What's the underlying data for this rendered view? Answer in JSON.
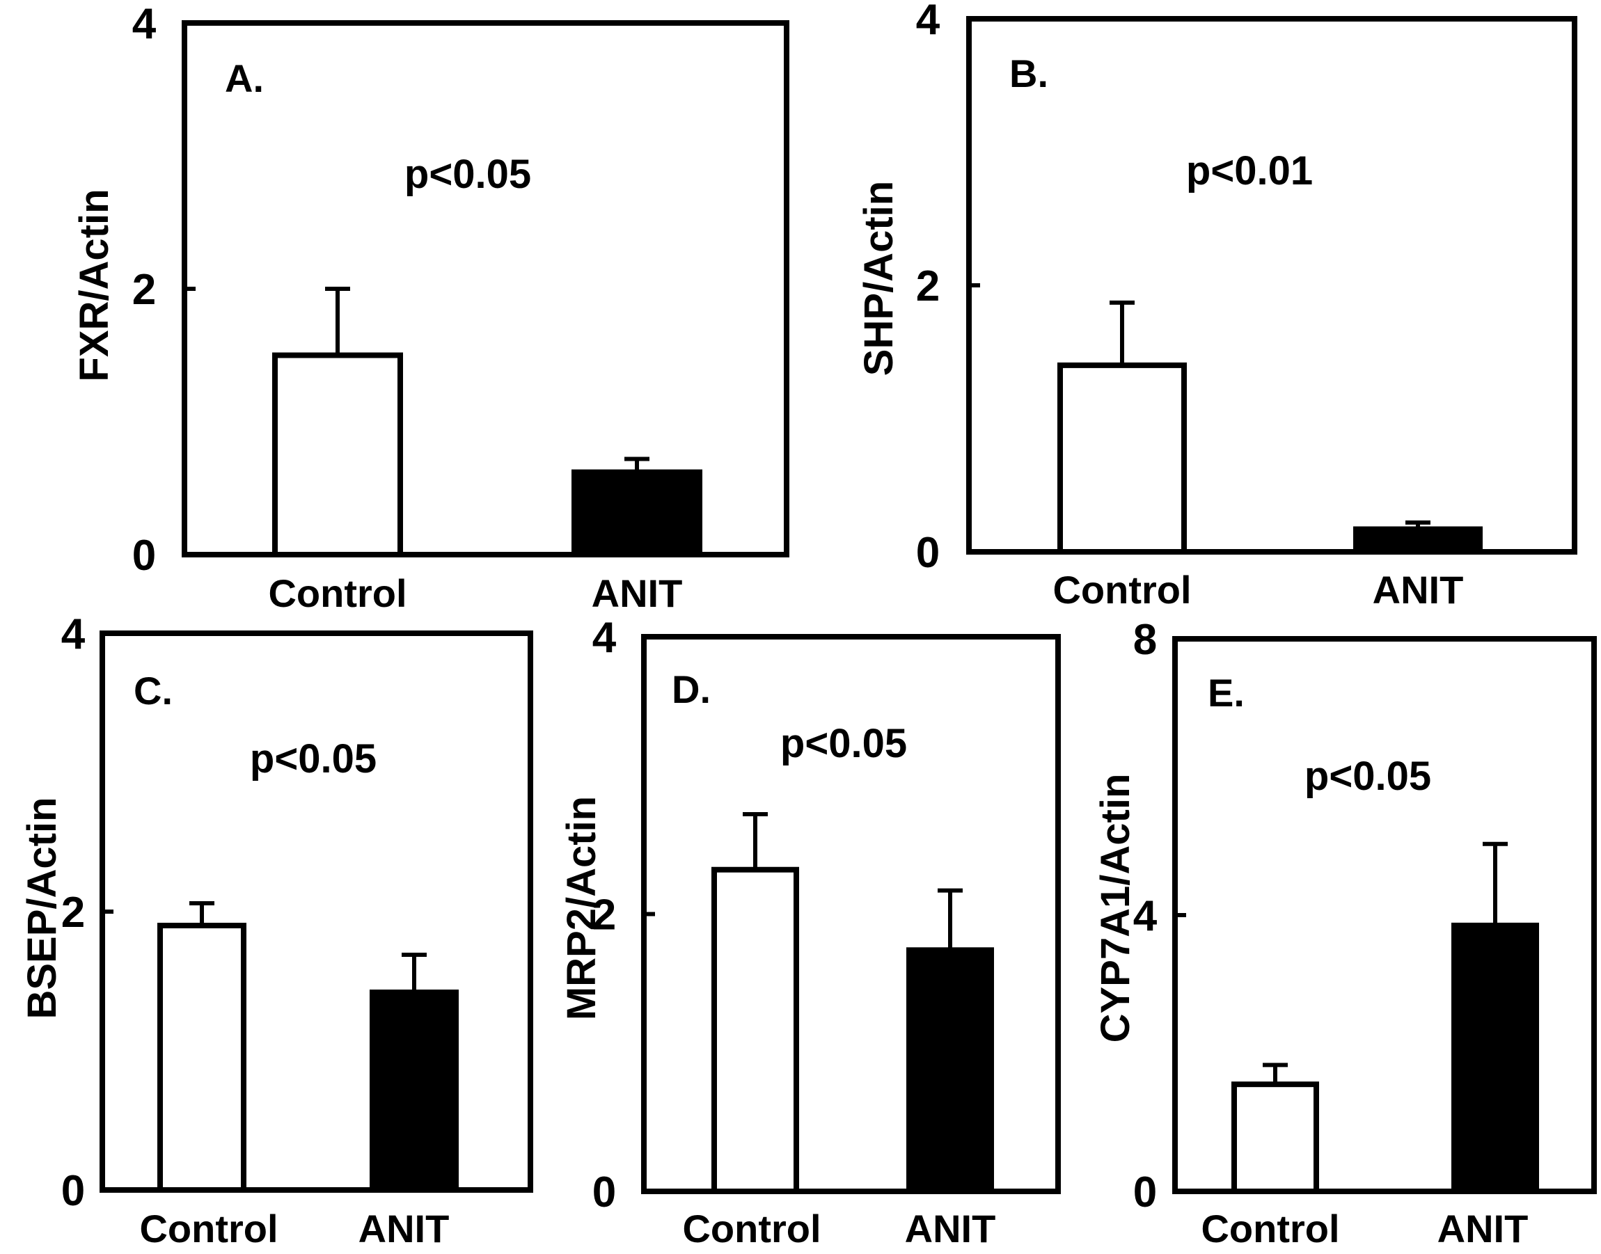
{
  "chart_data": [
    {
      "type": "bar",
      "panel": "A.",
      "ylabel": "FXR/Actin",
      "annotation": "p<0.05",
      "categories": [
        "Control",
        "ANIT"
      ],
      "values": [
        1.5,
        0.62
      ],
      "errors": [
        0.5,
        0.1
      ],
      "bar_colors": [
        "#ffffff",
        "#000000"
      ],
      "ylim": [
        0,
        4
      ],
      "yticks": [
        "0",
        "2",
        "4"
      ]
    },
    {
      "type": "bar",
      "panel": "B.",
      "ylabel": "SHP/Actin",
      "annotation": "p<0.01",
      "categories": [
        "Control",
        "ANIT"
      ],
      "values": [
        1.4,
        0.17
      ],
      "errors": [
        0.47,
        0.05
      ],
      "bar_colors": [
        "#ffffff",
        "#000000"
      ],
      "ylim": [
        0,
        4
      ],
      "yticks": [
        "0",
        "2",
        "4"
      ]
    },
    {
      "type": "bar",
      "panel": "C.",
      "ylabel": "BSEP/Actin",
      "annotation": "p<0.05",
      "categories": [
        "Control",
        "ANIT"
      ],
      "values": [
        1.9,
        1.42
      ],
      "errors": [
        0.16,
        0.27
      ],
      "bar_colors": [
        "#ffffff",
        "#000000"
      ],
      "ylim": [
        0,
        4
      ],
      "yticks": [
        "0",
        "2",
        "4"
      ]
    },
    {
      "type": "bar",
      "panel": "D.",
      "ylabel": "MRP2/Actin",
      "annotation": "p<0.05",
      "categories": [
        "Control",
        "ANIT"
      ],
      "values": [
        2.32,
        1.74
      ],
      "errors": [
        0.4,
        0.43
      ],
      "bar_colors": [
        "#ffffff",
        "#000000"
      ],
      "ylim": [
        0,
        4
      ],
      "yticks": [
        "0",
        "2",
        "4"
      ]
    },
    {
      "type": "bar",
      "panel": "E.",
      "ylabel": "CYP7A1/Actin",
      "annotation": "p<0.05",
      "categories": [
        "Control",
        "ANIT"
      ],
      "values": [
        1.55,
        3.85
      ],
      "errors": [
        0.28,
        1.18
      ],
      "bar_colors": [
        "#ffffff",
        "#000000"
      ],
      "ylim": [
        0,
        8
      ],
      "yticks": [
        "0",
        "4",
        "8"
      ]
    }
  ]
}
